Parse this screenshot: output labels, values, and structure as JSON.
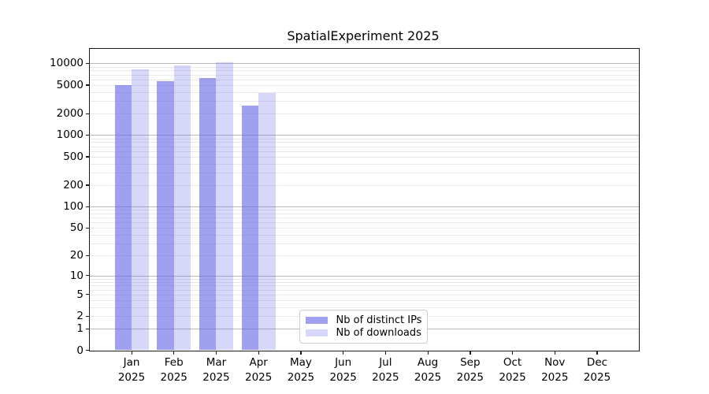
{
  "title": "SpatialExperiment 2025",
  "chart_data": {
    "type": "bar",
    "title": "SpatialExperiment 2025",
    "xlabel": "",
    "ylabel": "",
    "yscale": "log1p",
    "ylim": [
      0,
      16000
    ],
    "grid": true,
    "legend_position": "lower center",
    "categories": [
      "Jan 2025",
      "Feb 2025",
      "Mar 2025",
      "Apr 2025",
      "May 2025",
      "Jun 2025",
      "Jul 2025",
      "Aug 2025",
      "Sep 2025",
      "Oct 2025",
      "Nov 2025",
      "Dec 2025"
    ],
    "y_ticks": [
      10000,
      5000,
      2000,
      1000,
      500,
      200,
      100,
      50,
      20,
      10,
      5,
      2,
      1,
      0
    ],
    "series": [
      {
        "name": "Nb of distinct IPs",
        "color": "#6666e69e",
        "solid_color": "#a3a3f0",
        "values": [
          5000,
          5600,
          6200,
          2600,
          0,
          0,
          0,
          0,
          0,
          0,
          0,
          0
        ]
      },
      {
        "name": "Nb of downloads",
        "color": "#6666e642",
        "solid_color": "#d8d8f8",
        "values": [
          8200,
          9300,
          10500,
          3900,
          0,
          0,
          0,
          0,
          0,
          0,
          0,
          0
        ]
      }
    ]
  }
}
